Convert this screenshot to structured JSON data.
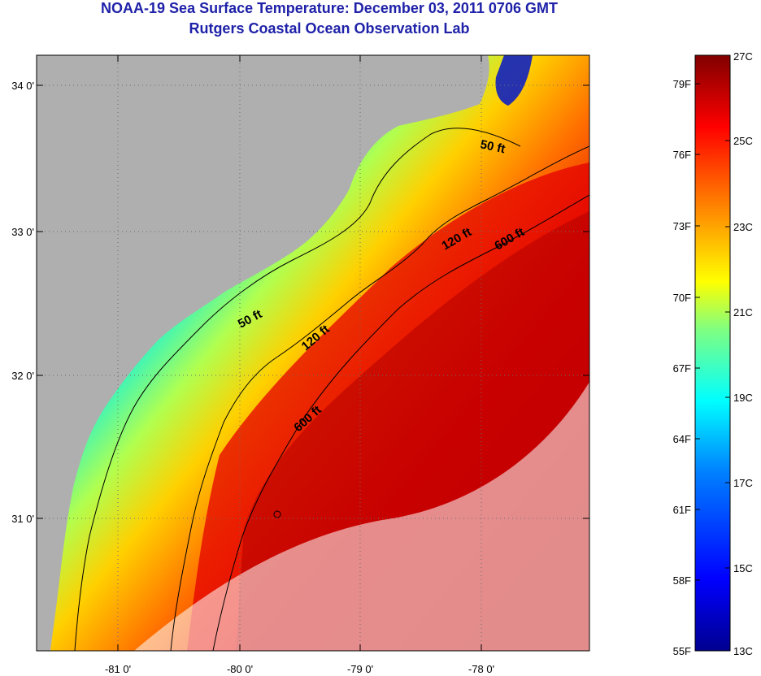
{
  "title": {
    "line1": "NOAA-19 Sea Surface Temperature:  December 03, 2011 0706 GMT",
    "line2": "Rutgers Coastal Ocean Observation Lab"
  },
  "map": {
    "lon_range": [
      -81.65,
      -77.2
    ],
    "lat_range": [
      30.2,
      34.2
    ],
    "lon_ticks": [
      "-81 0'",
      "-80 0'",
      "-79 0'",
      "-78 0'"
    ],
    "lat_ticks": [
      "34 0'",
      "33 0'",
      "32 0'",
      "31 0'"
    ],
    "gridlines": "dotted",
    "land_color": "#afafaf",
    "contours": [
      {
        "label": "50 ft",
        "depth_ft": 50
      },
      {
        "label": "120 ft",
        "depth_ft": 120
      },
      {
        "label": "600 ft",
        "depth_ft": 600
      }
    ],
    "contour_labels": [
      "50 ft",
      "50 ft",
      "120 ft",
      "120 ft",
      "600 ft",
      "600 ft"
    ]
  },
  "colorbar": {
    "fahrenheit_labels": [
      "79F",
      "76F",
      "73F",
      "70F",
      "67F",
      "64F",
      "61F",
      "58F",
      "55F"
    ],
    "celsius_labels": [
      "27C",
      "25C",
      "23C",
      "21C",
      "19C",
      "17C",
      "15C",
      "13C"
    ],
    "colors": [
      "#00008f",
      "#0000ff",
      "#0080ff",
      "#00ffff",
      "#80ff80",
      "#ffff00",
      "#ff8000",
      "#ff0000",
      "#800000"
    ]
  }
}
